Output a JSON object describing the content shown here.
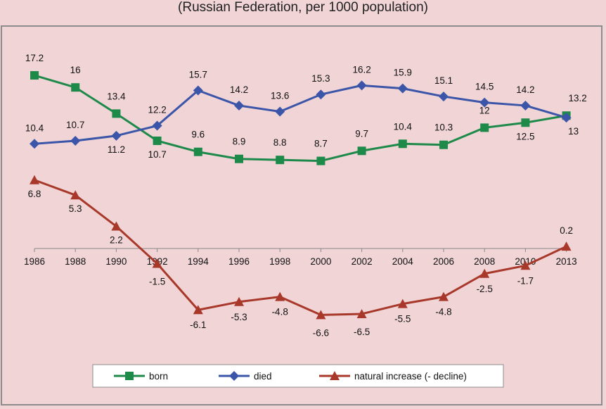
{
  "chart_data": {
    "type": "line",
    "title": "(Russian Federation, per 1000 population)",
    "categories": [
      "1986",
      "1988",
      "1990",
      "1992",
      "1994",
      "1996",
      "1998",
      "2000",
      "2002",
      "2004",
      "2006",
      "2008",
      "2010",
      "2013"
    ],
    "ylim": [
      -8,
      19
    ],
    "grid": false,
    "legend_position": "bottom",
    "series": [
      {
        "name": "born",
        "color": "#1e8a4a",
        "marker": "square",
        "values": [
          17.2,
          16,
          13.4,
          10.7,
          9.6,
          8.9,
          8.8,
          8.7,
          9.7,
          10.4,
          10.3,
          12,
          12.5,
          13.2
        ],
        "labels": [
          "17.2",
          "16",
          "13.4",
          "10.7",
          "9.6",
          "8.9",
          "8.8",
          "8.7",
          "9.7",
          "10.4",
          "10.3",
          "12",
          "12.5",
          "13.2"
        ]
      },
      {
        "name": "died",
        "color": "#3b55a8",
        "marker": "diamond",
        "values": [
          10.4,
          10.7,
          11.2,
          12.2,
          15.7,
          14.2,
          13.6,
          15.3,
          16.2,
          15.9,
          15.1,
          14.5,
          14.2,
          13
        ],
        "labels": [
          "10.4",
          "10.7",
          "11.2",
          "12.2",
          "15.7",
          "14.2",
          "13.6",
          "15.3",
          "16.2",
          "15.9",
          "15.1",
          "14.5",
          "14.2",
          "13"
        ]
      },
      {
        "name": "natural increase (- decline)",
        "color": "#a8382a",
        "marker": "triangle",
        "values": [
          6.8,
          5.3,
          2.2,
          -1.5,
          -6.1,
          -5.3,
          -4.8,
          -6.6,
          -6.5,
          -5.5,
          -4.8,
          -2.5,
          -1.7,
          0.2
        ],
        "labels": [
          "6.8",
          "5.3",
          "2.2",
          "-1.5",
          "-6.1",
          "-5.3",
          "-4.8",
          "-6.6",
          "-6.5",
          "-5.5",
          "-4.8",
          "-2.5",
          "-1.7",
          "0.2"
        ]
      }
    ]
  }
}
